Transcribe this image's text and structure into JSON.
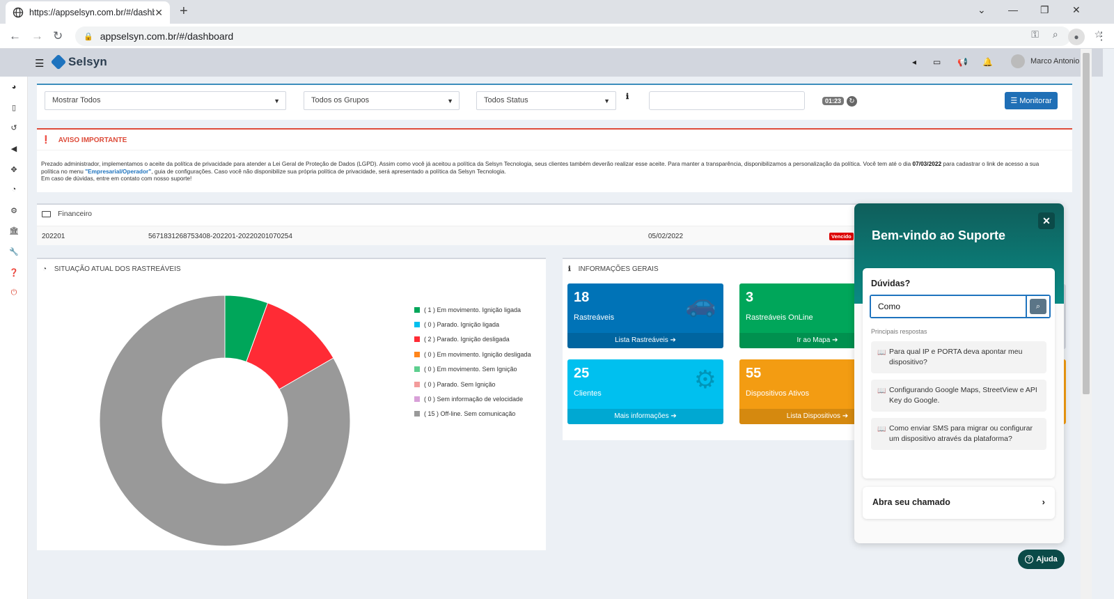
{
  "browser": {
    "tab_title": "https://appselsyn.com.br/#/dashb",
    "url": "appselsyn.com.br/#/dashboard"
  },
  "header": {
    "brand": "Selsyn",
    "user_name": "Marco Antonio"
  },
  "filters": {
    "select1": "Mostrar Todos",
    "select2": "Todos os Grupos",
    "select3": "Todos Status",
    "search_value": "",
    "timer": "01:23",
    "monitor_label": "Monitorar"
  },
  "alert": {
    "title": "AVISO IMPORTANTE",
    "text_part1": "Prezado administrador, implementamos o aceite da política de privacidade para atender a Lei Geral de Proteção de Dados (LGPD). Assim como você já aceitou a política da Selsyn Tecnologia, seus clientes também deverão realizar esse aceite. Para manter a transparência, disponibilizamos a personalização da política. Você tem até o dia ",
    "deadline": "07/03/2022",
    "text_part2": " para cadastrar o link de acesso a sua política no menu ",
    "menu_link": "\"Empresarial/Operador\"",
    "text_part3": ", guia de configurações. Caso você não disponibilize sua própria política de privacidade, será apresentado a política da Selsyn Tecnologia.",
    "text_line3": "Em caso de dúvidas, entre em contato com nosso suporte!"
  },
  "financeiro": {
    "title": "Financeiro",
    "row": {
      "ref": "202201",
      "code": "5671831268753408-202201-20220201070254",
      "date": "05/02/2022",
      "status": "Vencido"
    }
  },
  "situacao": {
    "title": "SITUAÇÃO ATUAL DOS RASTREÁVEIS"
  },
  "chart_data": {
    "type": "pie",
    "title": "SITUAÇÃO ATUAL DOS RASTREÁVEIS",
    "donut": true,
    "legend_position": "right",
    "categories": [
      "( 1 ) Em movimento. Ignição ligada",
      "( 0 ) Parado. Ignição ligada",
      "( 2 ) Parado. Ignição desligada",
      "( 0 ) Em movimento. Ignição desligada",
      "( 0 ) Em movimento. Sem Ignição",
      "( 0 ) Parado. Sem Ignição",
      "( 0 ) Sem informação de velocidade",
      "( 15 ) Off-line. Sem comunicação"
    ],
    "values": [
      1,
      0,
      2,
      0,
      0,
      0,
      0,
      15
    ],
    "colors": [
      "#00a65a",
      "#00c0ef",
      "#ff2b35",
      "#ff851b",
      "#5ecf8f",
      "#f39c9c",
      "#d8a0d8",
      "#999999"
    ]
  },
  "info_gerais": {
    "title": "INFORMAÇÕES GERAIS",
    "tiles": [
      {
        "num": "18",
        "label": "Rastreáveis",
        "link": "Lista Rastreáveis",
        "color": "#0073b7"
      },
      {
        "num": "3",
        "label": "Rastreáveis OnLine",
        "link": "Ir ao Mapa",
        "color": "#00a65a"
      },
      {
        "num": "25",
        "label": "Clientes",
        "link": "Mais informações",
        "color": "#00c0ef"
      },
      {
        "num": "55",
        "label": "Dispositivos Ativos",
        "link": "Lista Dispositivos",
        "color": "#f39c12"
      }
    ]
  },
  "support": {
    "title": "Bem-vindo ao Suporte",
    "question_label": "Dúvidas?",
    "search_value": "Como",
    "answers_label": "Principais respostas",
    "answers": [
      "Para qual IP e PORTA deva apontar meu dispositivo?",
      "Configurando Google Maps, StreetView e API Key do Google.",
      "Como enviar SMS para migrar ou configurar um dispositivo através da plataforma?"
    ],
    "ticket_label": "Abra seu chamado",
    "help_label": "Ajuda"
  }
}
